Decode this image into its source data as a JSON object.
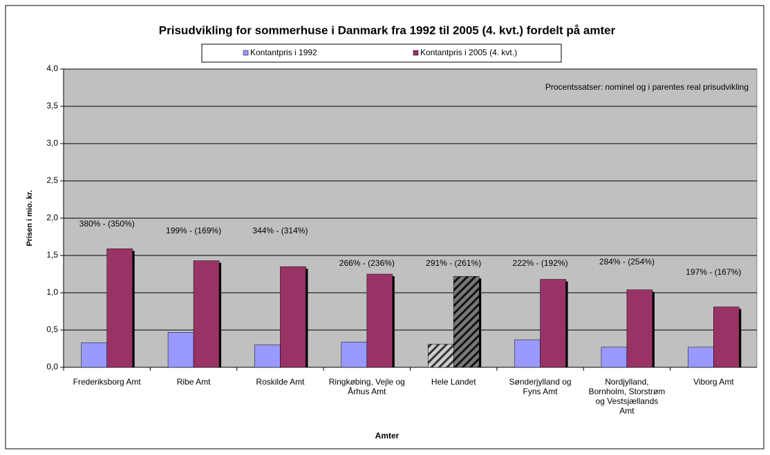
{
  "chart_data": {
    "type": "bar",
    "title": "Prisudvikling for sommerhuse i Danmark fra 1992 til 2005 (4. kvt.) fordelt på amter",
    "x_label": "Amter",
    "y_label": "Prisen i mio. kr.",
    "note": "Procentssatser: nominel og i parentes real prisudvikling",
    "categories": [
      "Frederiksborg Amt",
      "Ribe Amt",
      "Roskilde Amt",
      "Ringkøbing, Vejle og Århus Amt",
      "Hele Landet",
      "Sønderjylland og Fyns Amt",
      "Nordjylland, Bornholm, Storstrøm og Vestsjællands Amt",
      "Viborg Amt"
    ],
    "annotations": [
      "380% - (350%)",
      "199% - (169%)",
      "344% - (314%)",
      "266% - (236%)",
      "291% - (261%)",
      "222% - (192%)",
      "284% - (254%)",
      "197% - (167%)"
    ],
    "series": [
      {
        "name": "Kontantpris i 1992",
        "color": "#9999ff",
        "values": [
          0.33,
          0.47,
          0.3,
          0.34,
          0.31,
          0.37,
          0.27,
          0.27
        ],
        "pattern_points": [
          4
        ]
      },
      {
        "name": "Kontantpris i 2005 (4. kvt.)",
        "color": "#993366",
        "values": [
          1.59,
          1.43,
          1.35,
          1.25,
          1.22,
          1.18,
          1.04,
          0.81
        ],
        "pattern_points": [
          4
        ]
      }
    ],
    "ylim": [
      0,
      4
    ],
    "yticks": [
      {
        "value": 0,
        "label": "0,0"
      },
      {
        "value": 0.5,
        "label": "0,5"
      },
      {
        "value": 1,
        "label": "1,0"
      },
      {
        "value": 1.5,
        "label": "1,5"
      },
      {
        "value": 2,
        "label": "2,0"
      },
      {
        "value": 2.5,
        "label": "2,5"
      },
      {
        "value": 3,
        "label": "3,0"
      },
      {
        "value": 3.5,
        "label": "3,5"
      },
      {
        "value": 4,
        "label": "4,0"
      }
    ],
    "grid": true,
    "plot_background": "#c0c0c0"
  }
}
